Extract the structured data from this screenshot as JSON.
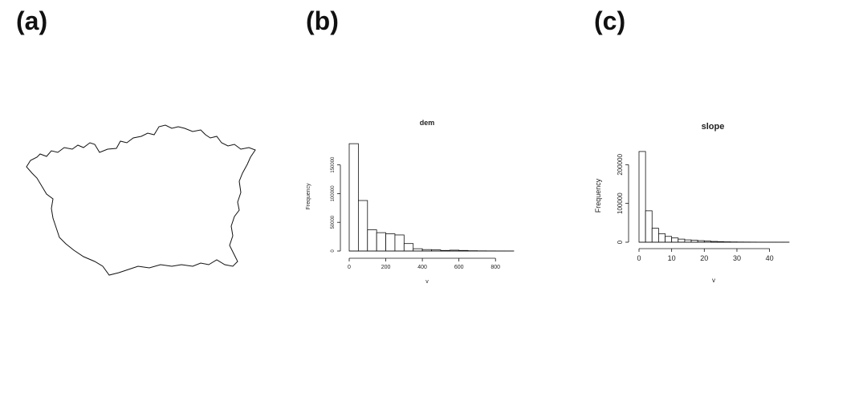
{
  "panels": {
    "a": {
      "label": "(a)"
    },
    "b": {
      "label": "(b)"
    },
    "c": {
      "label": "(c)"
    }
  },
  "chart_data": [
    {
      "panel": "(b)",
      "type": "bar",
      "title": "dem",
      "xlabel": "v",
      "ylabel": "Frequency",
      "bin_width": 50,
      "bin_starts": [
        0,
        50,
        100,
        150,
        200,
        250,
        300,
        350,
        400,
        450,
        500,
        550,
        600,
        650,
        700,
        750,
        800,
        850
      ],
      "values": [
        187000,
        88000,
        37000,
        32000,
        30000,
        28000,
        13000,
        4000,
        2500,
        2000,
        1000,
        1500,
        1000,
        500,
        300,
        200,
        150,
        100
      ],
      "xticks": [
        0,
        200,
        400,
        600,
        800
      ],
      "yticks": [
        0,
        50000,
        100000,
        150000
      ],
      "xlim": [
        0,
        900
      ],
      "ylim": [
        0,
        190000
      ]
    },
    {
      "panel": "(c)",
      "type": "bar",
      "title": "slope",
      "xlabel": "v",
      "ylabel": "Frequency",
      "bin_width": 2,
      "bin_starts": [
        0,
        2,
        4,
        6,
        8,
        10,
        12,
        14,
        16,
        18,
        20,
        22,
        24,
        26,
        28,
        30,
        32,
        34,
        36,
        38,
        40,
        42,
        44
      ],
      "values": [
        234000,
        81000,
        36000,
        22000,
        15000,
        11000,
        8000,
        6000,
        5000,
        4000,
        3000,
        2000,
        1500,
        1000,
        700,
        500,
        400,
        300,
        200,
        150,
        100,
        80,
        50
      ],
      "xticks": [
        0,
        10,
        20,
        30,
        40
      ],
      "yticks": [
        0,
        100000,
        200000
      ],
      "xlim": [
        0,
        46
      ],
      "ylim": [
        0,
        240000
      ]
    }
  ]
}
